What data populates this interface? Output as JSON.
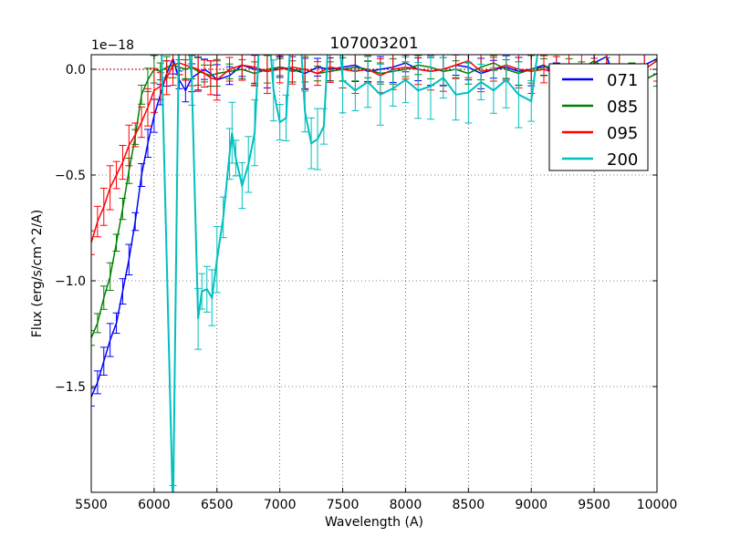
{
  "chart_data": {
    "type": "line",
    "title": "107003201",
    "xlabel": "Wavelength (A)",
    "ylabel": "Flux (erg/s/cm^2/A)",
    "y_offset_label": "1e−18",
    "xlim": [
      5500,
      10000
    ],
    "ylim": [
      -2.0,
      0.07
    ],
    "y_scale": 1e-18,
    "grid": true,
    "legend_position": "upper right",
    "x_ticks": [
      5500,
      6000,
      6500,
      7000,
      7500,
      8000,
      8500,
      9000,
      9500,
      10000
    ],
    "x_tick_labels": [
      "5500",
      "6000",
      "6500",
      "7000",
      "7500",
      "8000",
      "8500",
      "9000",
      "9500",
      "10000"
    ],
    "y_ticks": [
      0.0,
      -0.5,
      -1.0,
      -1.5
    ],
    "y_tick_labels": [
      "0.0",
      "−0.5",
      "−1.0",
      "−1.5"
    ],
    "reference_line": {
      "y": 0.0,
      "style": "dotted",
      "color": "#aa0000"
    },
    "series": [
      {
        "name": "071",
        "color": "#0000ff",
        "x": [
          5500,
          5550,
          5600,
          5650,
          5700,
          5750,
          5800,
          5850,
          5900,
          5950,
          6000,
          6050,
          6100,
          6150,
          6200,
          6250,
          6300,
          6350,
          6400,
          6450,
          6500,
          6600,
          6700,
          6800,
          6900,
          7000,
          7100,
          7200,
          7300,
          7400,
          7500,
          7600,
          7700,
          7800,
          7900,
          8000,
          8100,
          8200,
          8300,
          8400,
          8500,
          8600,
          8700,
          8800,
          8900,
          9000,
          9100,
          9200,
          9300,
          9400,
          9500,
          9600,
          9700,
          9800,
          9900,
          10000
        ],
        "y": [
          -1.55,
          -1.48,
          -1.38,
          -1.28,
          -1.2,
          -1.05,
          -0.9,
          -0.72,
          -0.5,
          -0.35,
          -0.22,
          -0.12,
          -0.02,
          0.05,
          -0.05,
          -0.1,
          -0.04,
          -0.02,
          0.0,
          -0.02,
          -0.05,
          -0.03,
          0.02,
          0.0,
          -0.01,
          0.01,
          0.0,
          -0.02,
          0.01,
          0.0,
          0.01,
          0.02,
          -0.01,
          0.0,
          0.01,
          0.03,
          0.0,
          -0.01,
          0.0,
          0.02,
          0.01,
          -0.02,
          0.0,
          0.01,
          -0.01,
          0.0,
          0.02,
          -0.03,
          0.01,
          -0.05,
          0.03,
          0.06,
          -0.1,
          -0.2,
          0.02,
          0.05
        ],
        "yerr": 0.06
      },
      {
        "name": "085",
        "color": "#008000",
        "x": [
          5500,
          5550,
          5600,
          5650,
          5700,
          5750,
          5800,
          5850,
          5900,
          5950,
          6000,
          6050,
          6100,
          6150,
          6200,
          6250,
          6300,
          6350,
          6400,
          6450,
          6500,
          6600,
          6700,
          6800,
          6900,
          7000,
          7100,
          7200,
          7300,
          7400,
          7500,
          7600,
          7700,
          7800,
          7900,
          8000,
          8100,
          8200,
          8300,
          8400,
          8500,
          8600,
          8700,
          8800,
          8900,
          9000,
          9100,
          9200,
          9300,
          9400,
          9500,
          9600,
          9700,
          9800,
          9900,
          10000
        ],
        "y": [
          -1.27,
          -1.2,
          -1.08,
          -0.98,
          -0.82,
          -0.66,
          -0.48,
          -0.32,
          -0.12,
          -0.05,
          0.0,
          -0.01,
          0.01,
          0.02,
          0.01,
          0.0,
          0.01,
          -0.01,
          -0.02,
          -0.03,
          -0.02,
          -0.01,
          0.0,
          -0.02,
          0.0,
          0.01,
          -0.01,
          0.0,
          -0.02,
          -0.01,
          0.0,
          0.01,
          0.0,
          -0.02,
          -0.01,
          0.0,
          0.02,
          0.01,
          -0.01,
          0.0,
          -0.02,
          0.01,
          0.03,
          0.0,
          -0.02,
          0.0,
          0.01,
          0.02,
          -0.01,
          0.0,
          0.04,
          0.0,
          0.02,
          -0.01,
          -0.05,
          -0.02
        ],
        "yerr": 0.05
      },
      {
        "name": "095",
        "color": "#ff0000",
        "x": [
          5500,
          5550,
          5600,
          5650,
          5700,
          5750,
          5800,
          5850,
          5900,
          5950,
          6000,
          6050,
          6100,
          6150,
          6200,
          6250,
          6300,
          6350,
          6400,
          6450,
          6500,
          6600,
          6700,
          6800,
          6900,
          7000,
          7100,
          7200,
          7300,
          7400,
          7500,
          7600,
          7700,
          7800,
          7900,
          8000,
          8100,
          8200,
          8300,
          8400,
          8500,
          8600,
          8700,
          8800,
          8900,
          9000,
          9100,
          9200,
          9300,
          9400,
          9500,
          9600,
          9700,
          9800,
          9900,
          10000
        ],
        "y": [
          -0.82,
          -0.72,
          -0.65,
          -0.56,
          -0.5,
          -0.44,
          -0.36,
          -0.31,
          -0.25,
          -0.18,
          -0.1,
          -0.08,
          -0.04,
          0.02,
          0.03,
          0.02,
          0.01,
          0.0,
          -0.02,
          -0.04,
          -0.05,
          0.0,
          0.02,
          0.01,
          -0.01,
          0.0,
          0.01,
          0.0,
          -0.02,
          0.01,
          0.0,
          -0.01,
          0.0,
          -0.03,
          0.0,
          0.01,
          0.0,
          -0.01,
          0.0,
          0.02,
          0.04,
          -0.01,
          0.0,
          0.02,
          0.0,
          -0.01,
          0.0,
          -0.02,
          0.01,
          0.02,
          -0.02,
          0.03,
          0.0,
          -0.05,
          0.0,
          0.04
        ],
        "yerr": 0.08
      },
      {
        "name": "200",
        "color": "#00bfbf",
        "x": [
          5950,
          6050,
          6150,
          6200,
          6250,
          6300,
          6350,
          6380,
          6420,
          6460,
          6500,
          6550,
          6600,
          6620,
          6650,
          6700,
          6750,
          6800,
          6850,
          6900,
          6950,
          7000,
          7050,
          7100,
          7150,
          7200,
          7250,
          7300,
          7350,
          7400,
          7450,
          7500,
          7600,
          7700,
          7800,
          7900,
          8000,
          8100,
          8200,
          8300,
          8400,
          8500,
          8600,
          8700,
          8800,
          8900,
          9000,
          9100,
          9200
        ],
        "y": [
          0.3,
          0.3,
          -2.1,
          0.3,
          0.3,
          -0.05,
          -1.18,
          -1.05,
          -1.04,
          -1.08,
          -0.9,
          -0.7,
          -0.4,
          -0.3,
          -0.42,
          -0.55,
          -0.45,
          -0.3,
          0.3,
          0.3,
          -0.1,
          -0.25,
          -0.23,
          0.3,
          0.3,
          -0.2,
          -0.35,
          -0.33,
          -0.27,
          0.3,
          0.3,
          -0.05,
          -0.1,
          -0.06,
          -0.12,
          -0.09,
          -0.05,
          -0.1,
          -0.08,
          -0.04,
          -0.12,
          -0.11,
          -0.06,
          -0.1,
          -0.05,
          -0.12,
          -0.15,
          0.3,
          0.3
        ],
        "yerr": 0.12
      }
    ],
    "legend": [
      "071",
      "085",
      "095",
      "200"
    ]
  }
}
